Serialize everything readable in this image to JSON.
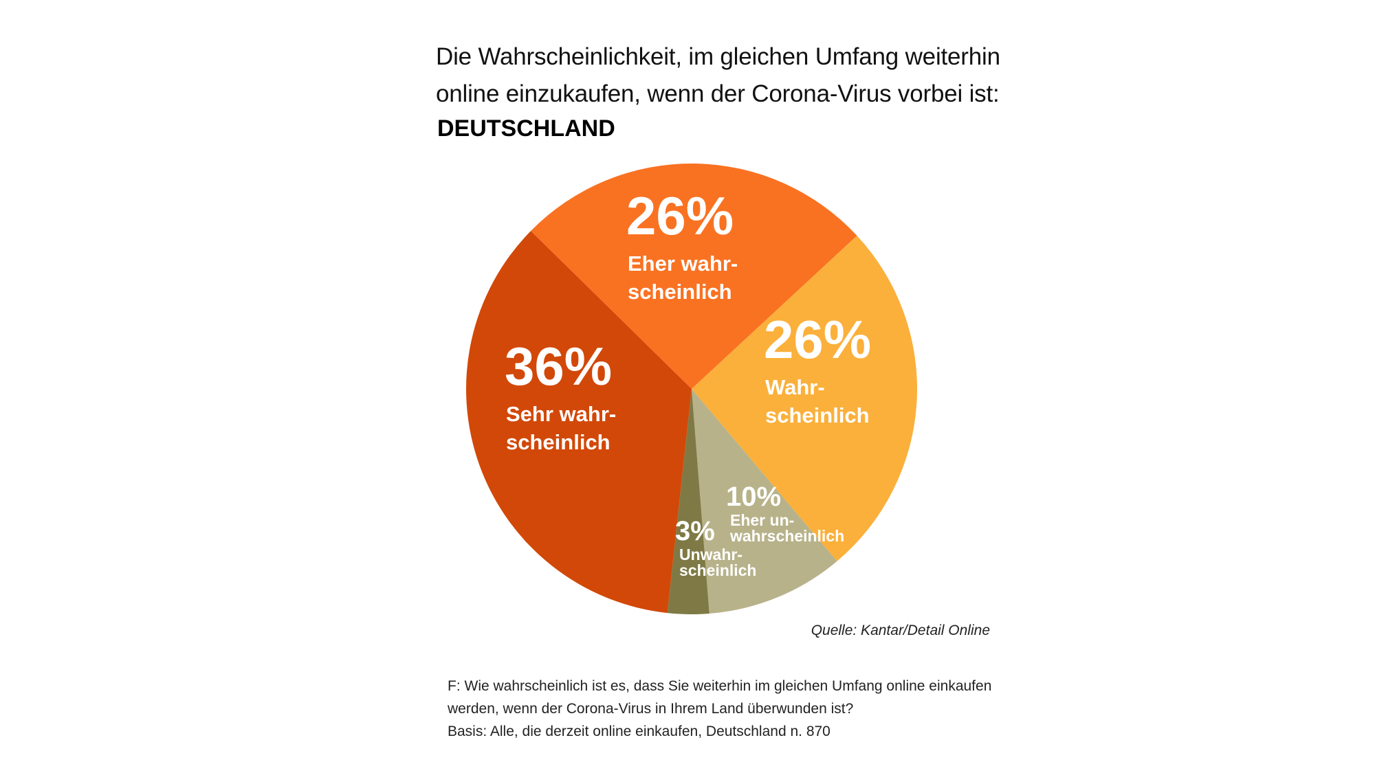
{
  "title_lines": [
    "Die Wahrscheinlichkeit, im gleichen Umfang weiterhin",
    "online einzukaufen, wenn der Corona-Virus vorbei ist:"
  ],
  "subtitle": "DEUTSCHLAND",
  "source": "Quelle: Kantar/Detail Online",
  "footnote_lines": [
    "F: Wie wahrscheinlich ist es, dass Sie weiterhin im gleichen Umfang online einkaufen",
    "werden, wenn der Corona-Virus in Ihrem Land überwunden ist?",
    "Basis: Alle, die derzeit online einkaufen, Deutschland n. 870"
  ],
  "chart_data": {
    "type": "pie",
    "title": "Die Wahrscheinlichkeit, im gleichen Umfang weiterhin online einzukaufen, wenn der Corona-Virus vorbei ist: DEUTSCHLAND",
    "slices": [
      {
        "label": "Eher wahrscheinlich",
        "label_lines": [
          "Eher wahr-",
          "scheinlich"
        ],
        "value": 26,
        "value_label": "26%",
        "color": "#F97222"
      },
      {
        "label": "Wahrscheinlich",
        "label_lines": [
          "Wahr-",
          "scheinlich"
        ],
        "value": 26,
        "value_label": "26%",
        "color": "#FBB03B"
      },
      {
        "label": "Eher unwahrscheinlich",
        "label_lines": [
          "Eher un-",
          "wahrscheinlich"
        ],
        "value": 10,
        "value_label": "10%",
        "color": "#B8B28A"
      },
      {
        "label": "Unwahrscheinlich",
        "label_lines": [
          "Unwahr-",
          "scheinlich"
        ],
        "value": 3,
        "value_label": "3%",
        "color": "#7F7A45"
      },
      {
        "label": "Sehr wahrscheinlich",
        "label_lines": [
          "Sehr wahr-",
          "scheinlich"
        ],
        "value": 36,
        "value_label": "36%",
        "color": "#D24808"
      }
    ]
  }
}
